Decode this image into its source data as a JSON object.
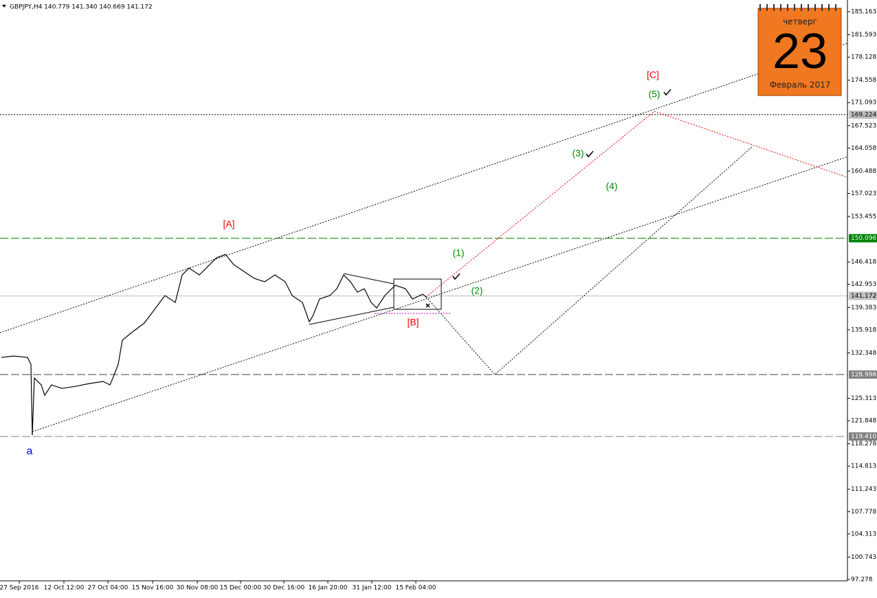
{
  "chart_data": {
    "type": "line",
    "title": "GBPJPY,H4  140.779 141.340 140.669 141.172",
    "series": [
      {
        "name": "GBPJPY",
        "color": "#000000",
        "x": [
          2,
          20,
          40,
          45,
          47,
          50,
          60,
          65,
          75,
          90,
          110,
          130,
          150,
          160,
          165,
          172,
          178,
          190,
          210,
          225,
          240,
          255,
          265,
          275,
          290,
          300,
          315,
          328,
          340,
          355,
          370,
          385,
          400,
          415,
          425,
          440,
          450,
          455,
          465,
          480,
          490,
          500,
          510,
          520,
          530,
          540,
          548,
          560,
          575,
          590,
          600,
          615,
          620
        ],
        "values": [
          131.65,
          131.86,
          131.65,
          130.58,
          119.6,
          128.45,
          127.39,
          125.79,
          127.39,
          126.85,
          127.17,
          127.6,
          127.92,
          127.39,
          128.66,
          130.58,
          134.3,
          135.37,
          136.96,
          139.09,
          141.22,
          140.15,
          144.41,
          145.47,
          144.41,
          145.47,
          147.07,
          147.6,
          146.01,
          144.94,
          143.88,
          143.35,
          144.41,
          143.35,
          141.22,
          140.15,
          137.17,
          138.03,
          140.69,
          141.22,
          142.28,
          144.41,
          143.35,
          141.75,
          142.28,
          140.15,
          139.3,
          141.22,
          142.81,
          142.28,
          140.69,
          141.43,
          141.01
        ]
      }
    ],
    "xlim": [
      0,
      1233
    ],
    "xticks": [
      {
        "value": 28,
        "label": "27 Sep 2016"
      },
      {
        "value": 93,
        "label": "12 Oct 12:00"
      },
      {
        "value": 157,
        "label": "27 Oct 04:00"
      },
      {
        "value": 222,
        "label": "15 Nov 16:00"
      },
      {
        "value": 287,
        "label": "30 Nov 08:00"
      },
      {
        "value": 350,
        "label": "15 Dec 00:00"
      },
      {
        "value": 413,
        "label": "30 Dec 16:00"
      },
      {
        "value": 477,
        "label": "16 Jan 20:00"
      },
      {
        "value": 541,
        "label": "31 Jan 12:00"
      },
      {
        "value": 605,
        "label": "15 Feb 04:00"
      }
    ],
    "ylim": [
      97.065,
      186.972
    ],
    "yticks": [
      185.163,
      181.593,
      178.128,
      174.558,
      171.093,
      167.523,
      164.058,
      160.488,
      157.023,
      153.455,
      146.418,
      142.953,
      139.383,
      135.918,
      132.348,
      125.313,
      121.848,
      118.278,
      114.813,
      111.243,
      107.778,
      104.313,
      100.743,
      97.278
    ],
    "levels": [
      {
        "value": 169.224,
        "label": "169.224",
        "color": "#000000",
        "style": "dotted",
        "label_bg": "#c0c0c0"
      },
      {
        "value": 150.096,
        "label": "150.096",
        "color": "#008000",
        "style": "dashed",
        "label_bg": "#008000"
      },
      {
        "value": 141.172,
        "label": "141.172",
        "color": "#c0c0c0",
        "style": "solid",
        "label_bg": "#c0c0c0"
      },
      {
        "value": 128.996,
        "label": "128.996",
        "color": "#404040",
        "style": "dashed",
        "label_bg": "#808080"
      },
      {
        "value": 119.41,
        "label": "119.410",
        "color": "#808080",
        "style": "dashed",
        "label_bg": "#808080"
      }
    ],
    "annotations": [
      "[C]",
      "(5)",
      "(3)",
      "(4)",
      "[A]",
      "(1)",
      "(2)",
      "[B]",
      "a"
    ],
    "calendar": {
      "weekday": "четверг",
      "day": "23",
      "month": "Февраль 2017"
    }
  }
}
